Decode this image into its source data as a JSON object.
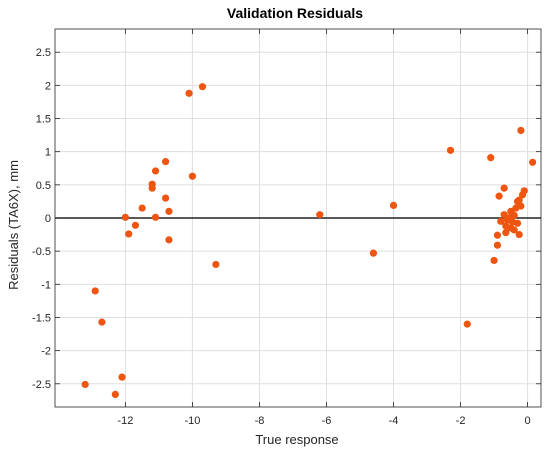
{
  "chart_data": {
    "type": "scatter",
    "title": "Validation Residuals",
    "xlabel": "True response",
    "ylabel": "Residuals (TA6X), mm",
    "xlim": [
      -14.1,
      0.4
    ],
    "ylim": [
      -2.85,
      2.85
    ],
    "xticks": [
      -12,
      -10,
      -8,
      -6,
      -4,
      -2,
      0
    ],
    "xtick_labels": [
      "-12",
      "-10",
      "-8",
      "-6",
      "-4",
      "-2",
      "0"
    ],
    "yticks": [
      2.5,
      2,
      1.5,
      1,
      0.5,
      0,
      -0.5,
      -1,
      -1.5,
      -2,
      -2.5
    ],
    "ytick_labels": [
      "2.5",
      "2",
      "1.5",
      "1",
      "0.5",
      "0",
      "-0.5",
      "-1",
      "-1.5",
      "-2",
      "-2.5"
    ],
    "grid": true,
    "reference_line_y": 0,
    "point_color": "#EE5510",
    "reference_line_color": "#222222",
    "grid_color": "#dfdfdf",
    "series": [
      {
        "points": [
          [
            -13.2,
            -2.51
          ],
          [
            -12.9,
            -1.1
          ],
          [
            -12.7,
            -1.57
          ],
          [
            -12.3,
            -2.66
          ],
          [
            -12.1,
            -2.4
          ],
          [
            -12.0,
            0.01
          ],
          [
            -11.9,
            -0.24
          ],
          [
            -11.7,
            -0.11
          ],
          [
            -11.5,
            0.15
          ],
          [
            -11.2,
            0.51
          ],
          [
            -11.2,
            0.45
          ],
          [
            -11.1,
            0.71
          ],
          [
            -11.1,
            0.01
          ],
          [
            -10.8,
            0.85
          ],
          [
            -10.8,
            0.3
          ],
          [
            -10.7,
            0.1
          ],
          [
            -10.7,
            -0.33
          ],
          [
            -10.1,
            1.88
          ],
          [
            -10.0,
            0.63
          ],
          [
            -9.7,
            1.98
          ],
          [
            -9.3,
            -0.7
          ],
          [
            -6.2,
            0.05
          ],
          [
            -4.6,
            -0.53
          ],
          [
            -4.0,
            0.19
          ],
          [
            -2.3,
            1.02
          ],
          [
            -1.8,
            -1.6
          ],
          [
            -1.1,
            0.91
          ],
          [
            -1.0,
            -0.64
          ],
          [
            -0.9,
            -0.41
          ],
          [
            -0.9,
            -0.26
          ],
          [
            -0.85,
            0.33
          ],
          [
            -0.8,
            -0.05
          ],
          [
            -0.7,
            0.45
          ],
          [
            -0.7,
            0.05
          ],
          [
            -0.65,
            -0.12
          ],
          [
            -0.65,
            -0.22
          ],
          [
            -0.6,
            -0.03
          ],
          [
            -0.55,
            0.0
          ],
          [
            -0.5,
            0.1
          ],
          [
            -0.5,
            -0.15
          ],
          [
            -0.45,
            -0.06
          ],
          [
            -0.4,
            0.04
          ],
          [
            -0.4,
            -0.18
          ],
          [
            -0.35,
            0.15
          ],
          [
            -0.3,
            0.25
          ],
          [
            -0.3,
            -0.08
          ],
          [
            -0.25,
            0.27
          ],
          [
            -0.25,
            -0.25
          ],
          [
            -0.2,
            1.32
          ],
          [
            -0.2,
            0.18
          ],
          [
            -0.15,
            0.35
          ],
          [
            -0.1,
            0.41
          ],
          [
            0.15,
            0.84
          ]
        ]
      }
    ]
  }
}
